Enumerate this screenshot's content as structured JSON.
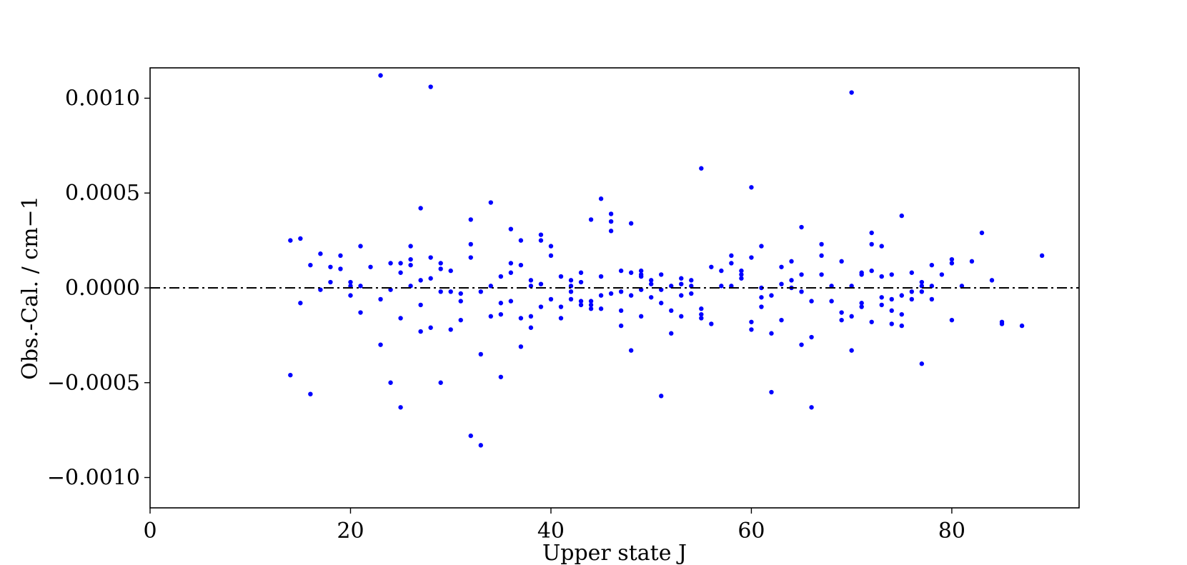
{
  "chart_data": {
    "type": "scatter",
    "xlabel": "Upper state J",
    "ylabel": "Obs.-Cal.  / cm−1",
    "xlim": [
      0,
      92.7
    ],
    "ylim": [
      -0.00116,
      0.00116
    ],
    "xticks": [
      0,
      20,
      40,
      60,
      80
    ],
    "xtick_labels": [
      "0",
      "20",
      "40",
      "60",
      "80"
    ],
    "yticks": [
      -0.001,
      -0.0005,
      0,
      0.0005,
      0.001
    ],
    "ytick_labels": [
      "−0.0010",
      "−0.0005",
      "0.0000",
      "0.0005",
      "0.0010"
    ],
    "grid": false,
    "reference_line": {
      "y": 0,
      "style": "dash-dot",
      "color": "#000000"
    },
    "marker_color": "#0000ff",
    "series": [
      {
        "points": [
          [
            14,
            0.00025
          ],
          [
            14,
            -0.00046
          ],
          [
            15,
            0.00026
          ],
          [
            15,
            -8e-05
          ],
          [
            16,
            0.00012
          ],
          [
            16,
            -0.00056
          ],
          [
            17,
            0.00018
          ],
          [
            17,
            -1e-05
          ],
          [
            18,
            0.00011
          ],
          [
            18,
            3e-05
          ],
          [
            19,
            0.00017
          ],
          [
            19,
            0.0001
          ],
          [
            20,
            3e-05
          ],
          [
            20,
            1e-05
          ],
          [
            20,
            -4e-05
          ],
          [
            21,
            0.00022
          ],
          [
            21,
            1e-05
          ],
          [
            21,
            -0.00013
          ],
          [
            22,
            0.00011
          ],
          [
            23,
            0.00112
          ],
          [
            23,
            -6e-05
          ],
          [
            23,
            -0.0003
          ],
          [
            24,
            0.00013
          ],
          [
            24,
            -1e-05
          ],
          [
            24,
            -0.0005
          ],
          [
            25,
            0.00013
          ],
          [
            25,
            8e-05
          ],
          [
            25,
            -0.00016
          ],
          [
            25,
            -0.00063
          ],
          [
            26,
            0.00022
          ],
          [
            26,
            0.00015
          ],
          [
            26,
            0.00012
          ],
          [
            26,
            1e-05
          ],
          [
            27,
            0.00042
          ],
          [
            27,
            4e-05
          ],
          [
            27,
            -9e-05
          ],
          [
            27,
            -0.00023
          ],
          [
            28,
            0.00106
          ],
          [
            28,
            0.00016
          ],
          [
            28,
            5e-05
          ],
          [
            28,
            -0.00021
          ],
          [
            29,
            0.00013
          ],
          [
            29,
            0.0001
          ],
          [
            29,
            -2e-05
          ],
          [
            29,
            -0.0005
          ],
          [
            30,
            9e-05
          ],
          [
            30,
            -2e-05
          ],
          [
            30,
            -0.00022
          ],
          [
            31,
            -3e-05
          ],
          [
            31,
            -7e-05
          ],
          [
            31,
            -0.00017
          ],
          [
            32,
            0.00036
          ],
          [
            32,
            0.00023
          ],
          [
            32,
            0.00016
          ],
          [
            32,
            -0.00078
          ],
          [
            33,
            -2e-05
          ],
          [
            33,
            -0.00035
          ],
          [
            33,
            -0.00083
          ],
          [
            34,
            0.00045
          ],
          [
            34,
            1e-05
          ],
          [
            34,
            -0.00015
          ],
          [
            35,
            6e-05
          ],
          [
            35,
            -8e-05
          ],
          [
            35,
            -0.00014
          ],
          [
            35,
            -0.00047
          ],
          [
            36,
            0.00031
          ],
          [
            36,
            0.00013
          ],
          [
            36,
            8e-05
          ],
          [
            36,
            -7e-05
          ],
          [
            37,
            0.00025
          ],
          [
            37,
            0.00012
          ],
          [
            37,
            -0.00016
          ],
          [
            37,
            -0.00031
          ],
          [
            38,
            4e-05
          ],
          [
            38,
            1e-05
          ],
          [
            38,
            -0.00015
          ],
          [
            38,
            -0.00021
          ],
          [
            39,
            0.00028
          ],
          [
            39,
            0.00025
          ],
          [
            39,
            2e-05
          ],
          [
            39,
            -0.0001
          ],
          [
            40,
            0.00022
          ],
          [
            40,
            0.00017
          ],
          [
            40,
            -6e-05
          ],
          [
            41,
            6e-05
          ],
          [
            41,
            -0.0001
          ],
          [
            41,
            -0.00016
          ],
          [
            42,
            4e-05
          ],
          [
            42,
            1e-05
          ],
          [
            42,
            -2e-05
          ],
          [
            42,
            -6e-05
          ],
          [
            43,
            8e-05
          ],
          [
            43,
            3e-05
          ],
          [
            43,
            -7e-05
          ],
          [
            43,
            -9e-05
          ],
          [
            44,
            0.00036
          ],
          [
            44,
            -7e-05
          ],
          [
            44,
            -9e-05
          ],
          [
            44,
            -0.00011
          ],
          [
            45,
            0.00047
          ],
          [
            45,
            6e-05
          ],
          [
            45,
            -4e-05
          ],
          [
            45,
            -0.00011
          ],
          [
            46,
            0.00039
          ],
          [
            46,
            0.00035
          ],
          [
            46,
            0.0003
          ],
          [
            46,
            -3e-05
          ],
          [
            47,
            9e-05
          ],
          [
            47,
            -2e-05
          ],
          [
            47,
            -0.00012
          ],
          [
            47,
            -0.0002
          ],
          [
            48,
            0.00034
          ],
          [
            48,
            8e-05
          ],
          [
            48,
            -4e-05
          ],
          [
            48,
            -0.00033
          ],
          [
            49,
            9e-05
          ],
          [
            49,
            7e-05
          ],
          [
            49,
            6e-05
          ],
          [
            49,
            -1e-05
          ],
          [
            49,
            -0.00015
          ],
          [
            50,
            4e-05
          ],
          [
            50,
            2e-05
          ],
          [
            50,
            -5e-05
          ],
          [
            51,
            7e-05
          ],
          [
            51,
            -1e-05
          ],
          [
            51,
            -8e-05
          ],
          [
            51,
            -0.00057
          ],
          [
            52,
            1e-05
          ],
          [
            52,
            -0.00012
          ],
          [
            52,
            -0.00024
          ],
          [
            53,
            5e-05
          ],
          [
            53,
            2e-05
          ],
          [
            53,
            -4e-05
          ],
          [
            53,
            -0.00015
          ],
          [
            54,
            4e-05
          ],
          [
            54,
            1e-05
          ],
          [
            54,
            -3e-05
          ],
          [
            55,
            0.00063
          ],
          [
            55,
            -0.00011
          ],
          [
            55,
            -0.00014
          ],
          [
            55,
            -0.00016
          ],
          [
            56,
            0.00011
          ],
          [
            56,
            -0.00019
          ],
          [
            57,
            9e-05
          ],
          [
            57,
            1e-05
          ],
          [
            58,
            0.00017
          ],
          [
            58,
            0.00013
          ],
          [
            58,
            1e-05
          ],
          [
            59,
            9e-05
          ],
          [
            59,
            7e-05
          ],
          [
            59,
            5e-05
          ],
          [
            60,
            0.00053
          ],
          [
            60,
            0.00016
          ],
          [
            60,
            -0.00018
          ],
          [
            60,
            -0.00022
          ],
          [
            61,
            0.00022
          ],
          [
            61,
            0
          ],
          [
            61,
            -5e-05
          ],
          [
            61,
            -0.0001
          ],
          [
            62,
            -4e-05
          ],
          [
            62,
            -0.00024
          ],
          [
            62,
            -0.00055
          ],
          [
            63,
            0.00011
          ],
          [
            63,
            2e-05
          ],
          [
            63,
            -0.00017
          ],
          [
            64,
            0.00014
          ],
          [
            64,
            4e-05
          ],
          [
            64,
            0
          ],
          [
            65,
            0.00032
          ],
          [
            65,
            7e-05
          ],
          [
            65,
            -2e-05
          ],
          [
            65,
            -0.0003
          ],
          [
            66,
            -7e-05
          ],
          [
            66,
            -0.00026
          ],
          [
            66,
            -0.00063
          ],
          [
            67,
            0.00023
          ],
          [
            67,
            0.00017
          ],
          [
            67,
            7e-05
          ],
          [
            68,
            1e-05
          ],
          [
            68,
            -7e-05
          ],
          [
            69,
            0.00014
          ],
          [
            69,
            -0.00013
          ],
          [
            69,
            -0.00017
          ],
          [
            70,
            0.00103
          ],
          [
            70,
            1e-05
          ],
          [
            70,
            -0.00015
          ],
          [
            70,
            -0.00033
          ],
          [
            71,
            8e-05
          ],
          [
            71,
            7e-05
          ],
          [
            71,
            -8e-05
          ],
          [
            71,
            -0.0001
          ],
          [
            72,
            0.00029
          ],
          [
            72,
            0.00023
          ],
          [
            72,
            9e-05
          ],
          [
            72,
            -0.00018
          ],
          [
            73,
            0.00022
          ],
          [
            73,
            6e-05
          ],
          [
            73,
            -5e-05
          ],
          [
            73,
            -9e-05
          ],
          [
            74,
            7e-05
          ],
          [
            74,
            -6e-05
          ],
          [
            74,
            -0.00012
          ],
          [
            74,
            -0.00019
          ],
          [
            75,
            0.00038
          ],
          [
            75,
            -4e-05
          ],
          [
            75,
            -0.00014
          ],
          [
            75,
            -0.0002
          ],
          [
            76,
            8e-05
          ],
          [
            76,
            -2e-05
          ],
          [
            76,
            -6e-05
          ],
          [
            77,
            3e-05
          ],
          [
            77,
            1e-05
          ],
          [
            77,
            -2e-05
          ],
          [
            77,
            -0.0004
          ],
          [
            78,
            0.00012
          ],
          [
            78,
            1e-05
          ],
          [
            78,
            -6e-05
          ],
          [
            79,
            7e-05
          ],
          [
            80,
            0.00015
          ],
          [
            80,
            0.00013
          ],
          [
            80,
            -0.00017
          ],
          [
            81,
            1e-05
          ],
          [
            82,
            0.00014
          ],
          [
            83,
            0.00029
          ],
          [
            84,
            4e-05
          ],
          [
            85,
            -0.00018
          ],
          [
            85,
            -0.00019
          ],
          [
            87,
            -0.0002
          ],
          [
            89,
            0.00017
          ]
        ]
      }
    ]
  }
}
